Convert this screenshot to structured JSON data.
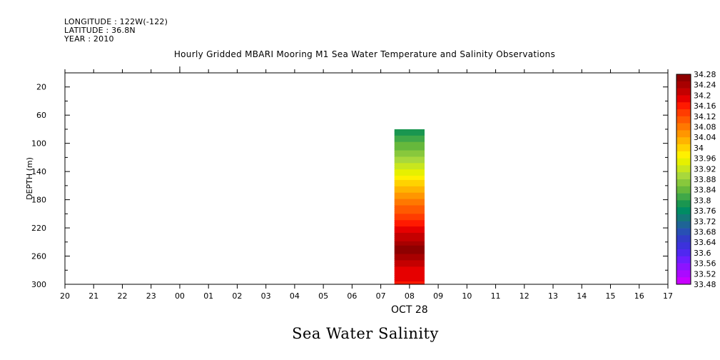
{
  "header": {
    "longitude": "LONGITUDE : 122W(-122)",
    "latitude": "LATITUDE : 36.8N",
    "year": "YEAR : 2010"
  },
  "title": "Hourly Gridded MBARI Mooring M1 Sea Water Temperature and Salinity Observations",
  "caption": "Sea Water Salinity",
  "chart_data": {
    "type": "heatmap",
    "title": "Hourly Gridded MBARI Mooring M1 Sea Water Temperature and Salinity Observations",
    "xlabel": "OCT 28",
    "ylabel": "DEPTH (m)",
    "x_ticks": [
      "20",
      "21",
      "22",
      "23",
      "00",
      "01",
      "02",
      "03",
      "04",
      "05",
      "06",
      "07",
      "08",
      "09",
      "10",
      "11",
      "12",
      "13",
      "14",
      "15",
      "16",
      "17"
    ],
    "y_ticks": [
      20,
      60,
      100,
      140,
      180,
      220,
      260,
      300
    ],
    "ylim": [
      300,
      0
    ],
    "y_inverted": true,
    "data_column": {
      "hour": "08",
      "depth_range": [
        80,
        300
      ],
      "profile": [
        {
          "depth": 80,
          "salinity": 33.77
        },
        {
          "depth": 100,
          "salinity": 33.83
        },
        {
          "depth": 120,
          "salinity": 33.88
        },
        {
          "depth": 140,
          "salinity": 33.94
        },
        {
          "depth": 160,
          "salinity": 34.01
        },
        {
          "depth": 180,
          "salinity": 34.07
        },
        {
          "depth": 200,
          "salinity": 34.12
        },
        {
          "depth": 220,
          "salinity": 34.18
        },
        {
          "depth": 240,
          "salinity": 34.23
        },
        {
          "depth": 250,
          "salinity": 34.27
        },
        {
          "depth": 260,
          "salinity": 34.24
        },
        {
          "depth": 280,
          "salinity": 34.19
        },
        {
          "depth": 300,
          "salinity": 34.17
        }
      ]
    },
    "colorbar": {
      "levels": [
        "34.28",
        "34.24",
        "34.2",
        "34.16",
        "34.12",
        "34.08",
        "34.04",
        "34",
        "33.96",
        "33.92",
        "33.88",
        "33.84",
        "33.8",
        "33.76",
        "33.72",
        "33.68",
        "33.64",
        "33.6",
        "33.56",
        "33.52",
        "33.48"
      ],
      "colors": [
        "#8e0000",
        "#a80000",
        "#c40000",
        "#e60000",
        "#ff1a00",
        "#ff3c00",
        "#ff5a00",
        "#ff7800",
        "#ff9600",
        "#ffb400",
        "#ffd200",
        "#fff000",
        "#e6f000",
        "#c8e61e",
        "#a8d83c",
        "#88c83c",
        "#66b83c",
        "#40a848",
        "#1a9650",
        "#008c64",
        "#147878",
        "#1e6496",
        "#2850b4",
        "#323cc8",
        "#3c32dc",
        "#5028f0",
        "#6e1eff",
        "#8c14ff",
        "#aa0aff",
        "#c800ff"
      ]
    },
    "grid": false
  }
}
